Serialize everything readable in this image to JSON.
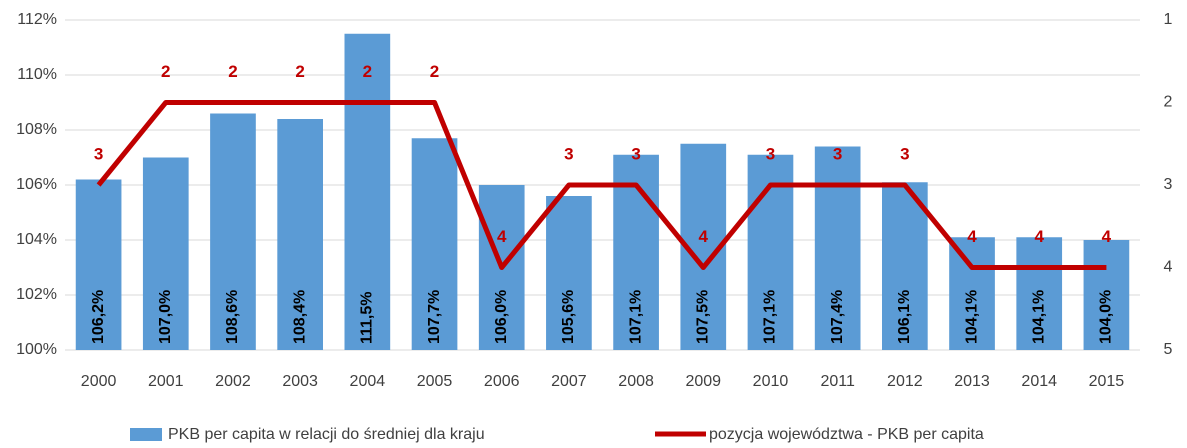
{
  "chart_data": {
    "type": "bar_line",
    "categories": [
      "2000",
      "2001",
      "2002",
      "2003",
      "2004",
      "2005",
      "2006",
      "2007",
      "2008",
      "2009",
      "2010",
      "2011",
      "2012",
      "2013",
      "2014",
      "2015"
    ],
    "series": [
      {
        "name": "PKB per capita w relacji do średniej dla kraju",
        "type": "bar",
        "color": "#5b9bd5",
        "values": [
          106.2,
          107.0,
          108.6,
          108.4,
          111.5,
          107.7,
          106.0,
          105.6,
          107.1,
          107.5,
          107.1,
          107.4,
          106.1,
          104.1,
          104.1,
          104.0
        ],
        "value_labels": [
          "106,2%",
          "107,0%",
          "108,6%",
          "108,4%",
          "111,5%",
          "107,7%",
          "106,0%",
          "105,6%",
          "107,1%",
          "107,5%",
          "107,1%",
          "107,4%",
          "106,1%",
          "104,1%",
          "104,1%",
          "104,0%"
        ]
      },
      {
        "name": "pozycja województwa  - PKB per capita",
        "type": "line",
        "axis": "y2",
        "color": "#c00000",
        "values": [
          3,
          2,
          2,
          2,
          2,
          2,
          4,
          3,
          3,
          4,
          3,
          3,
          3,
          4,
          4,
          4
        ]
      }
    ],
    "ylim": [
      100,
      112
    ],
    "yticks": [
      {
        "value": 100,
        "label": "100%"
      },
      {
        "value": 102,
        "label": "102%"
      },
      {
        "value": 104,
        "label": "104%"
      },
      {
        "value": 106,
        "label": "106%"
      },
      {
        "value": 108,
        "label": "108%"
      },
      {
        "value": 110,
        "label": "110%"
      },
      {
        "value": 112,
        "label": "112%"
      }
    ],
    "y2lim": [
      1,
      5
    ],
    "y2_inverted": true,
    "y2ticks": [
      1,
      2,
      3,
      4,
      5
    ],
    "grid": true,
    "legend": "bottom"
  }
}
